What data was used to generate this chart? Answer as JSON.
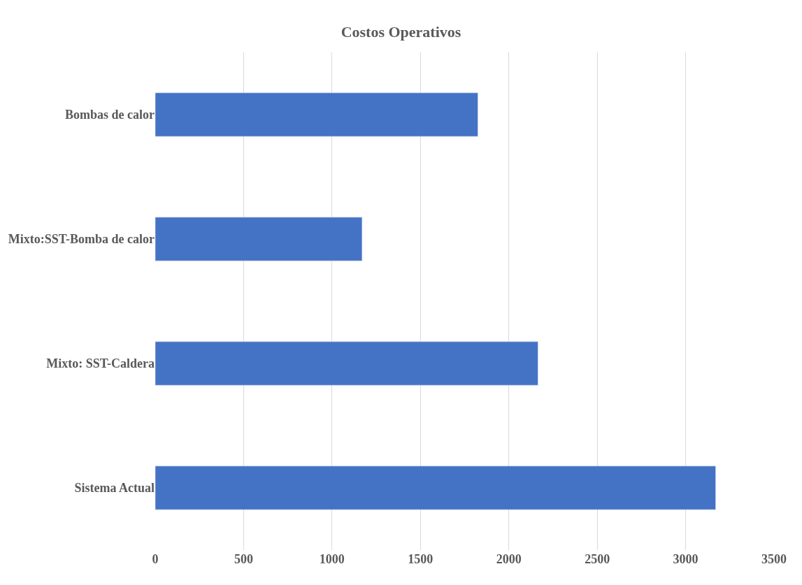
{
  "chart_data": {
    "type": "bar",
    "orientation": "horizontal",
    "title": "Costos Operativos",
    "categories": [
      "Bombas de calor",
      "Mixto:SST-Bomba de calor",
      "Mixto: SST-Caldera",
      "Sistema Actual"
    ],
    "values": [
      1825,
      1170,
      2165,
      3170
    ],
    "color": "#4472c4",
    "xlim": [
      0,
      3500
    ],
    "xticks": [
      0,
      500,
      1000,
      1500,
      2000,
      2500,
      3000,
      3500
    ],
    "grid": "x"
  }
}
